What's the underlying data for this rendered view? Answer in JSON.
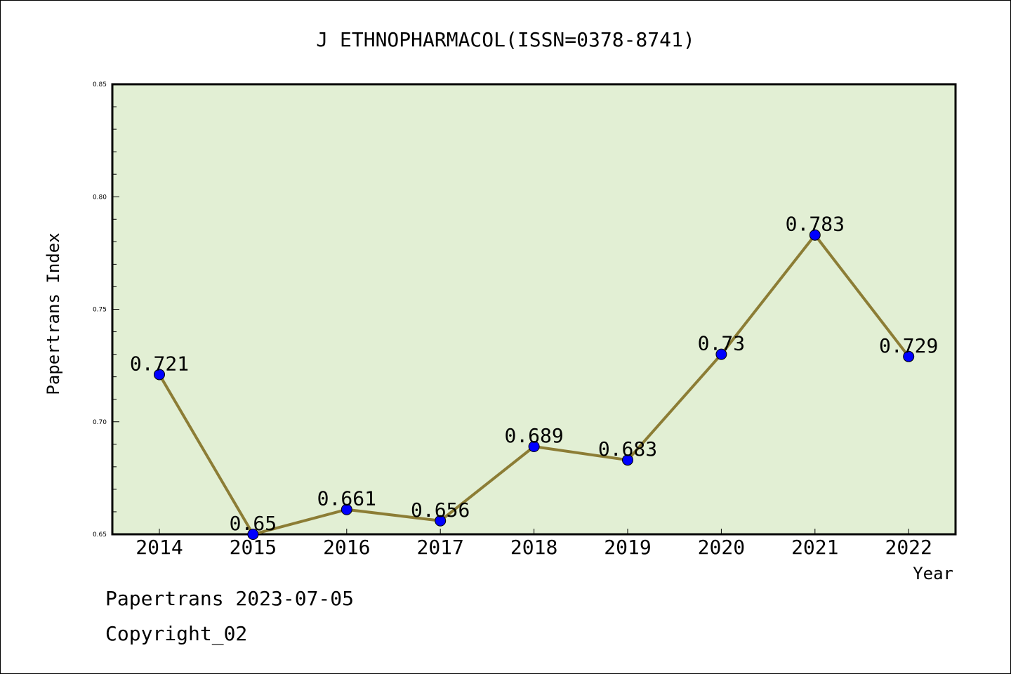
{
  "chart_data": {
    "type": "line",
    "title": "J ETHNOPHARMACOL(ISSN=0378-8741)",
    "xlabel": "Year",
    "ylabel": "Papertrans Index",
    "categories": [
      "2014",
      "2015",
      "2016",
      "2017",
      "2018",
      "2019",
      "2020",
      "2021",
      "2022"
    ],
    "values": [
      0.721,
      0.65,
      0.661,
      0.656,
      0.689,
      0.683,
      0.73,
      0.783,
      0.729
    ],
    "data_labels": [
      "0.721",
      "0.65",
      "0.661",
      "0.656",
      "0.689",
      "0.683",
      "0.73",
      "0.783",
      "0.729"
    ],
    "ylim": [
      0.65,
      0.85
    ],
    "yticks": [
      "0.65",
      "0.70",
      "0.75",
      "0.80",
      "0.85"
    ],
    "yticks_values": [
      0.65,
      0.7,
      0.75,
      0.8,
      0.85
    ],
    "grid": false,
    "colors": {
      "line": "#8c7d35",
      "marker": "#0000ff",
      "plot_bg": "#e2efd4"
    }
  },
  "footer": {
    "line1": "Papertrans 2023-07-05",
    "line2": "Copyright_02"
  }
}
